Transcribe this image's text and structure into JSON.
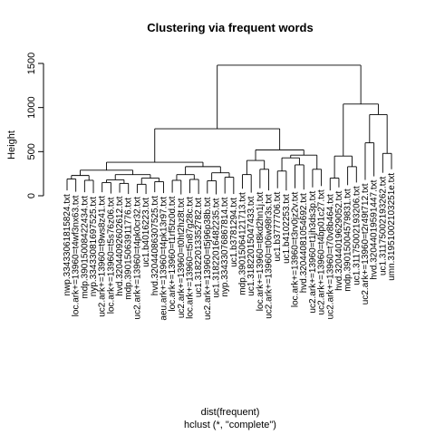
{
  "chart_data": {
    "type": "dendrogram",
    "title": "Clustering via frequent words",
    "ylabel": "Height",
    "xlabel": "dist(frequent)",
    "sublabel": "hclust (*, \"complete\")",
    "ylim": [
      0,
      1500
    ],
    "yticks": [
      0,
      500,
      1000,
      1500
    ],
    "leaf_labels": [
      "nwp.33433061815824.txt",
      "loc.ark+=13960=t4wf3nx63.txt",
      "mdp.39015008422434.txt",
      "nyp.33433081697525.txt",
      "uc2.ark+=13960=t9ws8z41.txt",
      "loc.ark+=13960=t5s76z06.txt",
      "hvd.32044092602612.txt",
      "mdp.39015063911776.txt",
      "uc2.ark+=13960=t4pk0cr32.txt",
      "uc1.b4016223.txt",
      "hvd.32044086307525.txt",
      "aeu.ark+=13960=t4pk13r97.txt",
      "loc.ark+=13960=t1rf5tz0d.txt",
      "uc2.ark+=13960=t0ht2hz8t.txt",
      "loc.ark+=13960=t5n87g28c.txt",
      "uc1.31822013352782.txt",
      "uc2.ark+=13960=t5j96p38b.txt",
      "uc1.31822016482235.txt",
      "nyp.33433076867814.txt",
      "uc1.b3781294.txt",
      "mdp.39015064121713.txt",
      "uc1.31822015047433.txt",
      "loc.ark+=13960=t8kd2hn1j.txt",
      "uc2.ark+=13960=t06w98r3s.txt",
      "uc1.b3777706.txt",
      "uc1.b4102253.txt",
      "loc.ark+=13960=t3rv0jz2v.txt",
      "hvd.32044081054692.txt",
      "uc2.ark+=13960=t1jh3ds3p.txt",
      "uc2.ark+=13960=t4bp01c27.txt",
      "uc2.ark+=13960=t70v8b464.txt",
      "hvd.32044019629052.txt",
      "mdp.39015004579831.txt",
      "uc1.31175002193206.txt",
      "uc2.ark+=13960=t2r49t712.txt",
      "hvd.32044019591447.txt",
      "uc1.31175002193262.txt",
      "umn.31951002103251e.txt"
    ]
  }
}
